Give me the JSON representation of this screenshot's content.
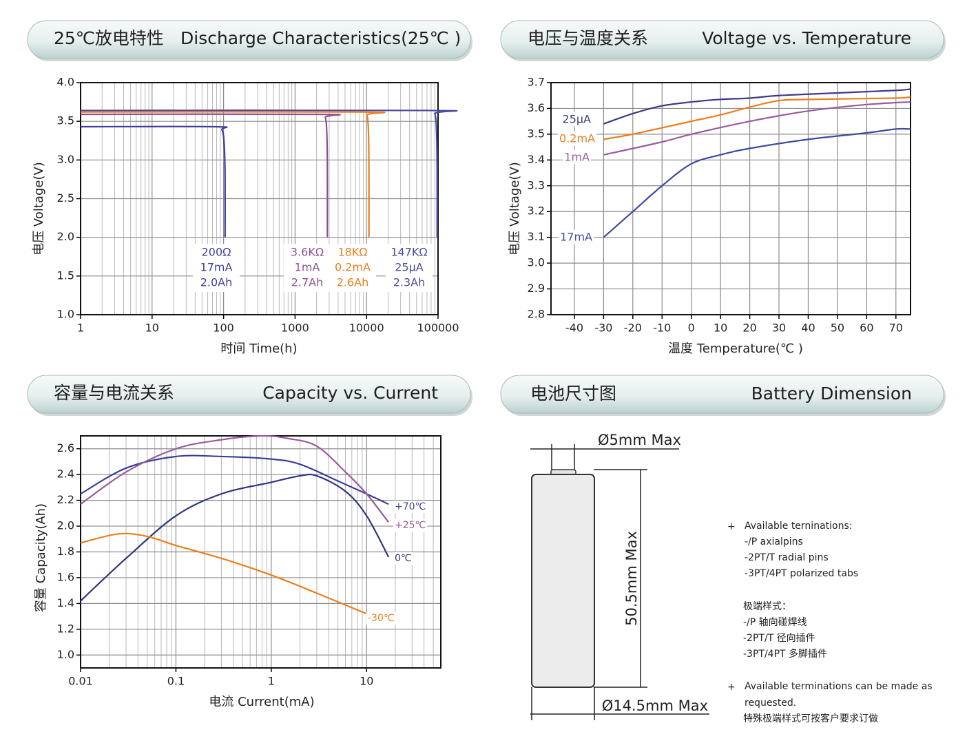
{
  "chart_data": [
    {
      "type": "line",
      "title": "25℃放电特性",
      "subtitle": "Discharge Characteristics(25℃ )",
      "xlabel": "时间 Time(h)",
      "ylabel": "电压 Voltage(V)",
      "xscale": "log",
      "xlim": [
        1,
        100000
      ],
      "ylim": [
        1,
        4
      ],
      "xticks": [
        1,
        10,
        100,
        1000,
        10000,
        100000
      ],
      "yticks": [
        {
          "value": 1,
          "label": "1.0"
        },
        1.5,
        {
          "value": 2,
          "label": "2.0"
        },
        2.5,
        {
          "value": 3,
          "label": "3.0"
        },
        3.5,
        {
          "value": 4,
          "label": "4.0"
        }
      ],
      "grid": true,
      "series": [
        {
          "name": "200Ω",
          "current": "17mA",
          "capacity": "2.0Ah",
          "color": "#3f3f9c",
          "x": [
            1,
            75,
            95,
            102,
            105,
            105
          ],
          "values": [
            3.43,
            3.43,
            3.39,
            3.2,
            2.8,
            2.0
          ]
        },
        {
          "name": "3.6KΩ",
          "current": "1mA",
          "capacity": "2.7Ah",
          "color": "#8e4e96",
          "x": [
            1,
            2300,
            2650,
            2780,
            2830,
            2830
          ],
          "values": [
            3.59,
            3.59,
            3.55,
            3.35,
            2.9,
            2.0
          ]
        },
        {
          "name": "18KΩ",
          "current": "0.2mA",
          "capacity": "2.6Ah",
          "color": "#ee7d1a",
          "x": [
            1,
            8800,
            10100,
            10600,
            10800,
            10800
          ],
          "values": [
            3.62,
            3.62,
            3.58,
            3.4,
            2.9,
            2.0
          ]
        },
        {
          "name": "147KΩ",
          "current": "25μA",
          "capacity": "2.3Ah",
          "color": "#4b4b9e",
          "x": [
            1,
            76000,
            90000,
            95000,
            97000,
            97000
          ],
          "values": [
            3.64,
            3.64,
            3.6,
            3.4,
            2.9,
            2.0
          ]
        }
      ]
    },
    {
      "type": "line",
      "title": "电压与温度关系",
      "subtitle": "Voltage vs. Temperature",
      "xlabel": "温度 Temperature(℃ )",
      "ylabel": "电压 Voltage(V)",
      "xlim": [
        -48,
        75
      ],
      "ylim": [
        2.8,
        3.7
      ],
      "xticks": [
        -40,
        -30,
        -20,
        -10,
        0,
        10,
        20,
        30,
        40,
        50,
        60,
        70
      ],
      "yticks": [
        2.8,
        2.9,
        {
          "value": 3,
          "label": "3.0"
        },
        3.1,
        3.2,
        3.3,
        3.4,
        3.5,
        3.6,
        3.7
      ],
      "grid": true,
      "series": [
        {
          "name": "25μA",
          "color": "#3a3a8c",
          "x": [
            -30,
            -20,
            -10,
            0,
            10,
            20,
            30,
            50,
            70,
            75
          ],
          "values": [
            3.54,
            3.58,
            3.61,
            3.625,
            3.635,
            3.64,
            3.65,
            3.66,
            3.67,
            3.675
          ]
        },
        {
          "name": "0.2mA",
          "color": "#ee7d1a",
          "x": [
            -30,
            -20,
            -10,
            0,
            10,
            20,
            30,
            40,
            70,
            75
          ],
          "values": [
            3.48,
            3.5,
            3.525,
            3.55,
            3.575,
            3.605,
            3.63,
            3.635,
            3.64,
            3.645
          ]
        },
        {
          "name": "1mA",
          "color": "#9a5aa0",
          "x": [
            -30,
            -10,
            0,
            20,
            40,
            60,
            75
          ],
          "values": [
            3.42,
            3.47,
            3.5,
            3.55,
            3.59,
            3.615,
            3.625
          ]
        },
        {
          "name": "17mA",
          "color": "#3c4aa0",
          "x": [
            -30,
            -20,
            -10,
            0,
            10,
            20,
            40,
            60,
            70,
            75
          ],
          "values": [
            3.1,
            3.2,
            3.3,
            3.385,
            3.42,
            3.445,
            3.48,
            3.505,
            3.52,
            3.52
          ]
        }
      ]
    },
    {
      "type": "line",
      "title": "容量与电流关系",
      "subtitle": "Capacity vs. Current",
      "xlabel": "电流 Current(mA)",
      "ylabel": "容量 Capacity(Ah)",
      "xscale": "log",
      "xlim": [
        0.01,
        60
      ],
      "ylim": [
        0.9,
        2.7
      ],
      "xticks": [
        0.01,
        0.1,
        1,
        10
      ],
      "yticks": [
        {
          "value": 1,
          "label": "1.0"
        },
        1.2,
        1.4,
        1.6,
        1.8,
        {
          "value": 2,
          "label": "2.0"
        },
        2.2,
        2.4,
        2.6
      ],
      "grid": true,
      "series": [
        {
          "name": "+70℃",
          "color": "#3a3f95",
          "x": [
            0.01,
            0.03,
            0.1,
            0.3,
            1,
            2,
            5,
            10,
            17
          ],
          "values": [
            2.25,
            2.45,
            2.54,
            2.54,
            2.52,
            2.48,
            2.35,
            2.25,
            2.17
          ]
        },
        {
          "name": "+25℃",
          "color": "#9a5a9a",
          "x": [
            0.01,
            0.03,
            0.1,
            0.3,
            0.8,
            1.5,
            3,
            6,
            10,
            17
          ],
          "values": [
            2.17,
            2.42,
            2.6,
            2.67,
            2.7,
            2.68,
            2.62,
            2.42,
            2.25,
            2.03
          ]
        },
        {
          "name": "0℃",
          "color": "#2f3480",
          "x": [
            0.01,
            0.03,
            0.1,
            0.3,
            1,
            2,
            3,
            6,
            10,
            17
          ],
          "values": [
            1.42,
            1.75,
            2.08,
            2.25,
            2.34,
            2.39,
            2.39,
            2.27,
            2.08,
            1.76
          ]
        },
        {
          "name": "-30℃",
          "color": "#ee7d1a",
          "x": [
            0.01,
            0.025,
            0.05,
            0.1,
            0.3,
            1,
            3,
            10
          ],
          "values": [
            1.87,
            1.94,
            1.92,
            1.85,
            1.75,
            1.62,
            1.48,
            1.32
          ]
        }
      ]
    }
  ],
  "dimension": {
    "title": "电池尺寸图",
    "subtitle": "Battery Dimension",
    "pin_diameter": "Ø5mm Max",
    "height": "50.5mm Max",
    "diameter": "Ø14.5mm Max",
    "terminations": {
      "bullet": "+",
      "heading": "Available terninations:",
      "items": [
        "-/P axialpins",
        "-2PT/T radial pins",
        "-3PT/4PT polarized tabs"
      ]
    },
    "terminations_cn": {
      "heading": "极端样式：",
      "items": [
        "-/P 轴向碰焊线",
        "-2PT/T 径向插件",
        "-3PT/4PT 多脚插件"
      ]
    },
    "custom": {
      "bullet": "+",
      "lines": [
        "Available terminations can be made as",
        "requested.",
        "特殊极端样式可按客户要求订做"
      ]
    }
  }
}
